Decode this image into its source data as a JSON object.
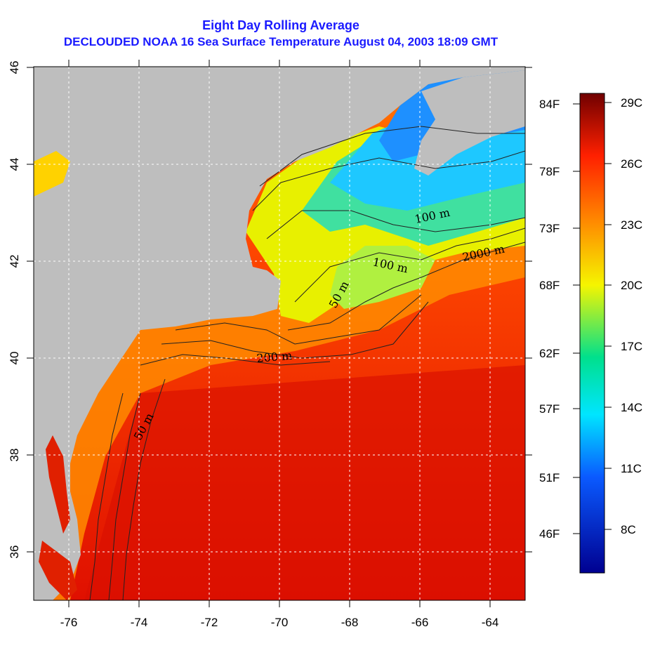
{
  "title": {
    "line1": "Eight Day Rolling Average",
    "line2": "DECLOUDED NOAA 16 Sea Surface Temperature August 04, 2003 18:09 GMT"
  },
  "map": {
    "lon_range": [
      -77,
      -63
    ],
    "lat_range": [
      35,
      46
    ],
    "x_ticks": [
      "-76",
      "-74",
      "-72",
      "-70",
      "-68",
      "-66",
      "-64"
    ],
    "y_ticks": [
      "36",
      "38",
      "40",
      "42",
      "44",
      "46"
    ],
    "grid": "dotted",
    "land_color": "#bebebe",
    "contour_labels": [
      "100 m",
      "2000 m",
      "100 m",
      "50 m",
      "200 m",
      "50 m"
    ]
  },
  "scale": {
    "fahrenheit": [
      "84F",
      "78F",
      "73F",
      "68F",
      "62F",
      "57F",
      "51F",
      "46F"
    ],
    "celsius": [
      "29C",
      "26C",
      "23C",
      "20C",
      "17C",
      "14C",
      "11C",
      "8C"
    ],
    "colors": [
      "#7a0000",
      "#ff2000",
      "#ff8c00",
      "#f5f500",
      "#00e08c",
      "#00e5ff",
      "#0a5aff",
      "#000090"
    ]
  }
}
